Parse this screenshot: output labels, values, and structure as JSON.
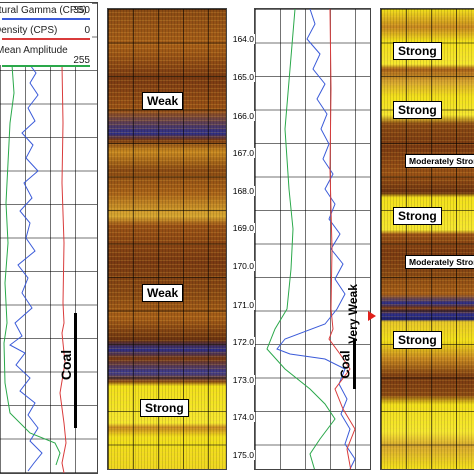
{
  "legend": {
    "gamma_label": "Natural Gamma (CPS)",
    "gamma_max": "350",
    "density_label": "Density (CPS)",
    "density_min": "0",
    "amp_label": "Mean Amplitude",
    "amp_max": "255",
    "gamma_color": "#3b5bd9",
    "density_color": "#d93b3b",
    "amp_color": "#2aa84a"
  },
  "labels": {
    "weak_upper": "Weak",
    "weak_lower": "Weak",
    "strong_left": "Strong",
    "coal_left": "Coal",
    "coal_right": "Coal",
    "very_weak": "Very Weak",
    "strong_r1": "Strong",
    "strong_r2": "Strong",
    "mod_r1": "Moderately Strong",
    "strong_r3": "Strong",
    "mod_r2": "Moderately Strong",
    "strong_r4": "Strong"
  },
  "depths": [
    "164.0",
    "165.0",
    "166.0",
    "167.0",
    "168.0",
    "169.0",
    "170.0",
    "171.0",
    "172.0",
    "173.0",
    "174.0",
    "175.0"
  ],
  "colors": {
    "image_dark": "#7a3a12",
    "image_mid": "#b8741c",
    "image_yellow": "#f3e21a",
    "image_blue": "#2c2f8a",
    "marker_red": "#e0201a"
  }
}
